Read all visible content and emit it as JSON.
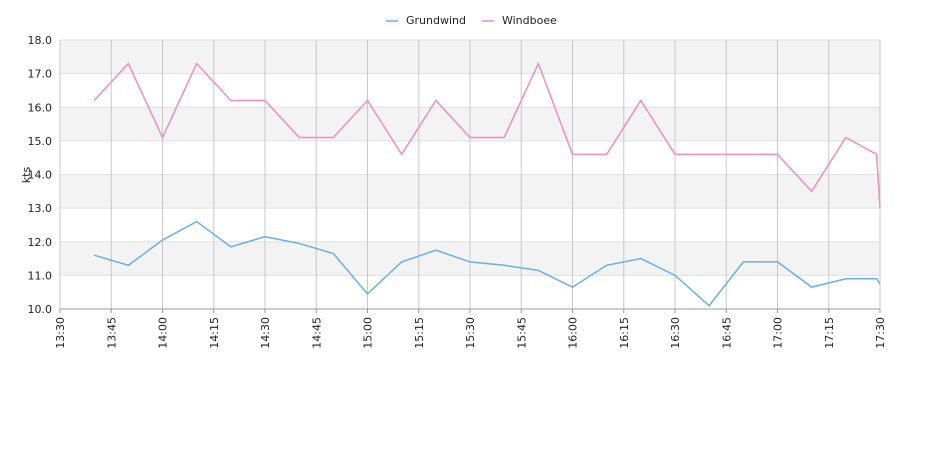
{
  "chart_data": {
    "type": "line",
    "y_label": "kts",
    "x": [
      "13:40",
      "13:50",
      "14:00",
      "14:10",
      "14:20",
      "14:30",
      "14:40",
      "14:50",
      "15:00",
      "15:10",
      "15:20",
      "15:30",
      "15:40",
      "15:50",
      "16:00",
      "16:10",
      "16:20",
      "16:30",
      "16:40",
      "16:50",
      "17:00",
      "17:10",
      "17:20",
      "17:29",
      "17:30"
    ],
    "series": [
      {
        "name": "Grundwind",
        "color": "#6aaee8",
        "values": [
          11.6,
          11.3,
          12.05,
          12.6,
          11.85,
          12.15,
          11.95,
          11.65,
          10.45,
          11.4,
          11.75,
          11.4,
          11.3,
          11.15,
          10.65,
          11.3,
          11.5,
          11.0,
          10.1,
          11.4,
          11.4,
          10.65,
          10.9,
          10.9,
          10.75
        ]
      },
      {
        "name": "Windboee",
        "color": "#ee8cc4",
        "values": [
          16.2,
          17.3,
          15.1,
          17.3,
          16.2,
          16.2,
          15.1,
          15.1,
          16.2,
          14.6,
          16.2,
          15.1,
          15.1,
          17.3,
          14.6,
          14.6,
          16.2,
          14.6,
          14.6,
          14.6,
          14.6,
          13.5,
          15.1,
          14.6,
          13.0
        ]
      }
    ],
    "xlim": [
      "13:30",
      "17:30"
    ],
    "xticks": [
      "13:30",
      "13:45",
      "14:00",
      "14:15",
      "14:30",
      "14:45",
      "15:00",
      "15:15",
      "15:30",
      "15:45",
      "16:00",
      "16:15",
      "16:30",
      "16:45",
      "17:00",
      "17:15",
      "17:30"
    ],
    "ylim": [
      10,
      18
    ],
    "yticks": [
      {
        "value": 10,
        "label": "10.0"
      },
      {
        "value": 11,
        "label": "11.0"
      },
      {
        "value": 12,
        "label": "12.0"
      },
      {
        "value": 13,
        "label": "13.0"
      },
      {
        "value": 14,
        "label": "14.0"
      },
      {
        "value": 15,
        "label": "15.0"
      },
      {
        "value": 16,
        "label": "16.0"
      },
      {
        "value": 17,
        "label": "17.0"
      },
      {
        "value": 18,
        "label": "18.0"
      }
    ],
    "grid": true
  }
}
